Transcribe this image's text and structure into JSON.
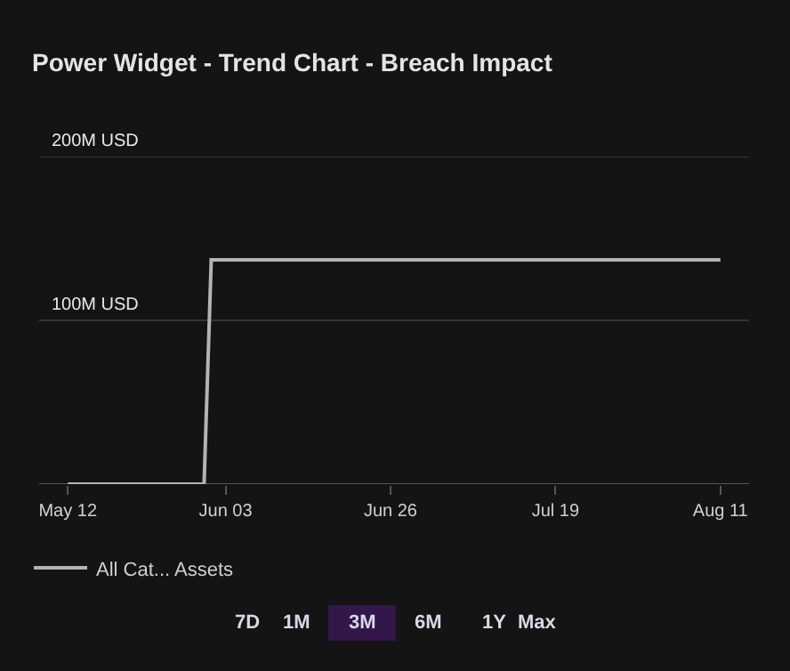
{
  "chart_data": {
    "type": "line",
    "title": "Power Widget - Trend Chart - Breach Impact",
    "x": [
      "--05-12",
      "--05-31",
      "--06-01",
      "--08-11"
    ],
    "series": [
      {
        "name": "All Cat... Assets",
        "color": "#b4b4b4",
        "values": [
          0,
          0,
          137,
          137
        ]
      }
    ],
    "xlim": [
      "--05-08",
      "--08-15"
    ],
    "xticks": [
      {
        "value": "--05-12",
        "label": "May 12"
      },
      {
        "value": "--06-03",
        "label": "Jun 03"
      },
      {
        "value": "--06-26",
        "label": "Jun 26"
      },
      {
        "value": "--07-19",
        "label": "Jul 19"
      },
      {
        "value": "--08-11",
        "label": "Aug 11"
      }
    ],
    "ylim": [
      0,
      200
    ],
    "yticks": [
      {
        "value": 0,
        "label": null
      },
      {
        "value": 100,
        "label": "100M USD"
      },
      {
        "value": 200,
        "label": "200M USD"
      }
    ],
    "grid": "y",
    "legend": "bottom left",
    "marker": "none",
    "line_style": "solid",
    "annotations": [
      "7D",
      "1M",
      "3M",
      "6M",
      "1Y",
      "Max"
    ]
  }
}
